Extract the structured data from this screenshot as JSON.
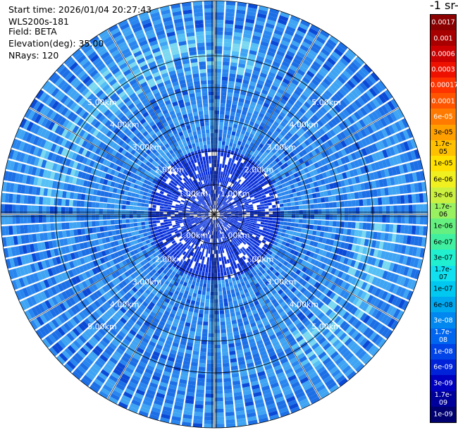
{
  "info": {
    "start_time": "Start time: 2026/01/04 20:27:43",
    "instrument": "WLS200s-181",
    "field": "Field: BETA",
    "elevation": "Elevation(deg): 35.00",
    "nrays": "NRays: 120"
  },
  "colorbar": {
    "title": "-1 sr-",
    "levels": [
      {
        "label": "0.0017",
        "color": "#8b0000",
        "text_color": "#ffffff"
      },
      {
        "label": "0.001",
        "color": "#a80000",
        "text_color": "#ffffff"
      },
      {
        "label": "0.0006",
        "color": "#cc0000",
        "text_color": "#ffffff"
      },
      {
        "label": "0.0003",
        "color": "#ee1100",
        "text_color": "#ffffff"
      },
      {
        "label": "0.00017",
        "color": "#ff3300",
        "text_color": "#ffffff"
      },
      {
        "label": "0.0001",
        "color": "#ff5500",
        "text_color": "#ffffff"
      },
      {
        "label": "6e-05",
        "color": "#ff7a00",
        "text_color": "#ffffff"
      },
      {
        "label": "3e-05",
        "color": "#ffa000",
        "text_color": "#000000"
      },
      {
        "label": "1.7e-05",
        "color": "#ffc000",
        "text_color": "#000000"
      },
      {
        "label": "1e-05",
        "color": "#ffe000",
        "text_color": "#000000"
      },
      {
        "label": "6e-06",
        "color": "#f0f020",
        "text_color": "#000000"
      },
      {
        "label": "3e-06",
        "color": "#ccf040",
        "text_color": "#000000"
      },
      {
        "label": "1.7e-06",
        "color": "#99f060",
        "text_color": "#000000"
      },
      {
        "label": "1e-06",
        "color": "#66f080",
        "text_color": "#000000"
      },
      {
        "label": "6e-07",
        "color": "#40f0a0",
        "text_color": "#000000"
      },
      {
        "label": "3e-07",
        "color": "#20f0d0",
        "text_color": "#000000"
      },
      {
        "label": "1.7e-07",
        "color": "#10e0f0",
        "text_color": "#000000"
      },
      {
        "label": "1e-07",
        "color": "#00c8f0",
        "text_color": "#000000"
      },
      {
        "label": "6e-08",
        "color": "#00a8f0",
        "text_color": "#000000"
      },
      {
        "label": "3e-08",
        "color": "#0088f0",
        "text_color": "#ffffff"
      },
      {
        "label": "1.7e-08",
        "color": "#0066f0",
        "text_color": "#ffffff"
      },
      {
        "label": "1e-08",
        "color": "#0044e8",
        "text_color": "#ffffff"
      },
      {
        "label": "6e-09",
        "color": "#0022d8",
        "text_color": "#ffffff"
      },
      {
        "label": "3e-09",
        "color": "#0000c0",
        "text_color": "#ffffff"
      },
      {
        "label": "1.7e-09",
        "color": "#00009a",
        "text_color": "#ffffff"
      },
      {
        "label": "1e-09",
        "color": "#000070",
        "text_color": "#ffffff"
      }
    ]
  },
  "plot": {
    "range_rings": [
      "1.00km",
      "2.00km",
      "3.00km",
      "4.00km",
      "5.00km"
    ],
    "palette": [
      "#1d6fe6",
      "#2a86ef",
      "#3fa4f3",
      "#0b4ad6",
      "#55c0f5",
      "#7ad8f0"
    ]
  }
}
